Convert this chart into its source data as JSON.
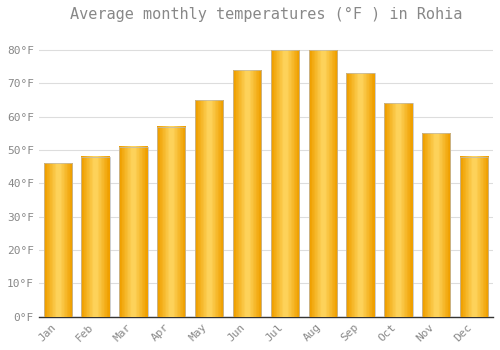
{
  "title": "Average monthly temperatures (°F ) in Rohia",
  "months": [
    "Jan",
    "Feb",
    "Mar",
    "Apr",
    "May",
    "Jun",
    "Jul",
    "Aug",
    "Sep",
    "Oct",
    "Nov",
    "Dec"
  ],
  "temperatures": [
    46,
    48,
    51,
    57,
    65,
    74,
    80,
    80,
    73,
    64,
    55,
    48
  ],
  "bar_color_center": "#FFD966",
  "bar_color_edge": "#F0A000",
  "background_color": "#FFFFFF",
  "grid_color": "#DDDDDD",
  "yticks": [
    0,
    10,
    20,
    30,
    40,
    50,
    60,
    70,
    80
  ],
  "ylim": [
    0,
    86
  ],
  "title_fontsize": 11,
  "tick_fontsize": 8,
  "font_color": "#888888",
  "bar_width": 0.75
}
